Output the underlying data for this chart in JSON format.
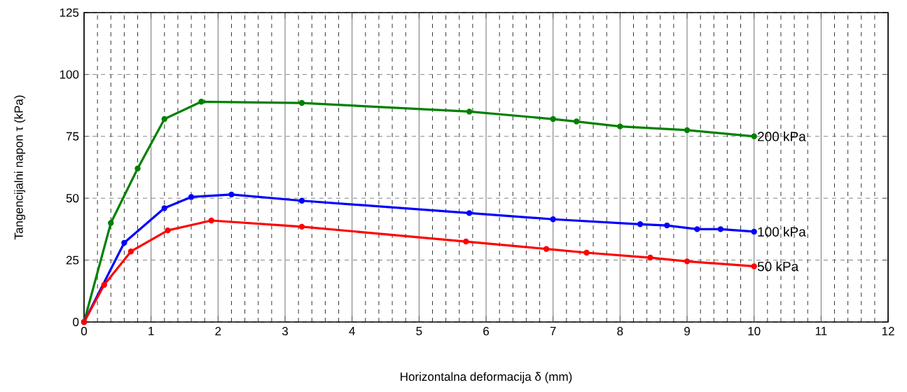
{
  "chart_data": {
    "type": "line",
    "xlabel": "Horizontalna deformacija δ (mm)",
    "ylabel": "Tangencijalni napon τ (kPa)",
    "xlim": [
      0,
      12
    ],
    "xticks": [
      0,
      1,
      2,
      3,
      4,
      5,
      6,
      7,
      8,
      9,
      10,
      11,
      12
    ],
    "ylim": [
      0,
      125
    ],
    "yticks": [
      0,
      25,
      50,
      75,
      100,
      125
    ],
    "grid": true,
    "marker": "circle",
    "line_style": "solid",
    "series": [
      {
        "name": "200 kPa",
        "color": "#008000",
        "x": [
          0,
          0.4,
          0.8,
          1.2,
          1.75,
          3.25,
          5.75,
          7,
          7.35,
          8,
          9,
          10
        ],
        "values": [
          0,
          40,
          62,
          82,
          89,
          88.5,
          85,
          82,
          81,
          79,
          77.5,
          75
        ]
      },
      {
        "name": "100 kPa",
        "color": "#0000ff",
        "x": [
          0,
          0.6,
          1.2,
          1.6,
          2.2,
          3.25,
          5.75,
          7,
          8.3,
          8.7,
          9.15,
          9.5,
          10
        ],
        "values": [
          0,
          32,
          46,
          50.5,
          51.5,
          49,
          44,
          41.5,
          39.5,
          39,
          37.5,
          37.5,
          36.5
        ]
      },
      {
        "name": "50 kPa",
        "color": "#ff0000",
        "x": [
          0,
          0.3,
          0.7,
          1.25,
          1.9,
          3.25,
          5.7,
          6.9,
          7.5,
          8.45,
          9,
          10
        ],
        "values": [
          0,
          15,
          28.5,
          37,
          41,
          38.5,
          32.5,
          29.5,
          28,
          26,
          24.5,
          22.5
        ]
      }
    ]
  }
}
